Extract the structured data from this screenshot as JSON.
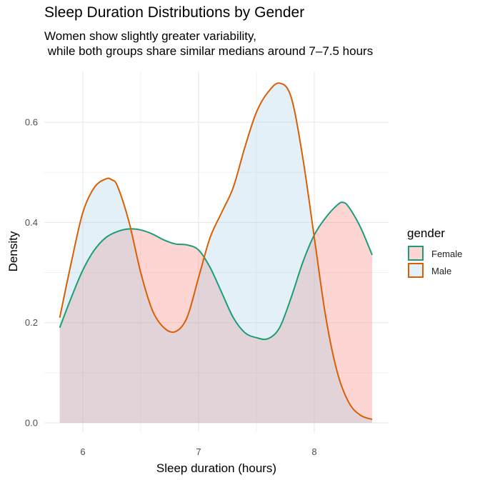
{
  "chart_data": {
    "type": "area",
    "title": "Sleep Duration Distributions by Gender",
    "subtitle": "Women show slightly greater variability,\n while both groups share similar medians around 7–7.5 hours",
    "xlabel": "Sleep duration (hours)",
    "ylabel": "Density",
    "xlim": [
      5.8,
      8.5
    ],
    "ylim": [
      0,
      0.68
    ],
    "x_ticks": [
      6,
      7,
      8
    ],
    "x_tick_labels": [
      "6",
      "7",
      "8"
    ],
    "y_ticks": [
      0.0,
      0.2,
      0.4,
      0.6
    ],
    "y_tick_labels": [
      "0.0",
      "0.2",
      "0.4",
      "0.6"
    ],
    "grid": true,
    "legend": {
      "title": "gender",
      "position": "right"
    },
    "series": [
      {
        "name": "Female",
        "color": "#1b9e77",
        "fill": "#f8766d",
        "x": [
          5.8,
          5.9,
          6.0,
          6.1,
          6.2,
          6.3,
          6.4,
          6.5,
          6.6,
          6.7,
          6.8,
          6.9,
          7.0,
          7.1,
          7.2,
          7.3,
          7.4,
          7.5,
          7.6,
          7.7,
          7.8,
          7.9,
          8.0,
          8.1,
          8.2,
          8.25,
          8.3,
          8.4,
          8.5
        ],
        "y": [
          0.19,
          0.25,
          0.305,
          0.345,
          0.37,
          0.382,
          0.387,
          0.385,
          0.377,
          0.365,
          0.357,
          0.355,
          0.345,
          0.31,
          0.26,
          0.21,
          0.18,
          0.17,
          0.168,
          0.19,
          0.25,
          0.32,
          0.375,
          0.41,
          0.435,
          0.44,
          0.43,
          0.39,
          0.335
        ]
      },
      {
        "name": "Male",
        "color": "#d95f02",
        "fill": "#a6cee3",
        "x": [
          5.8,
          5.9,
          6.0,
          6.1,
          6.2,
          6.25,
          6.3,
          6.4,
          6.5,
          6.6,
          6.7,
          6.8,
          6.9,
          7.0,
          7.1,
          7.2,
          7.3,
          7.4,
          7.5,
          7.6,
          7.7,
          7.8,
          7.9,
          8.0,
          8.1,
          8.2,
          8.3,
          8.4,
          8.5
        ],
        "y": [
          0.21,
          0.32,
          0.42,
          0.47,
          0.487,
          0.485,
          0.472,
          0.4,
          0.3,
          0.225,
          0.19,
          0.182,
          0.21,
          0.29,
          0.37,
          0.42,
          0.47,
          0.55,
          0.62,
          0.66,
          0.678,
          0.65,
          0.53,
          0.37,
          0.21,
          0.1,
          0.04,
          0.015,
          0.007
        ]
      }
    ]
  }
}
